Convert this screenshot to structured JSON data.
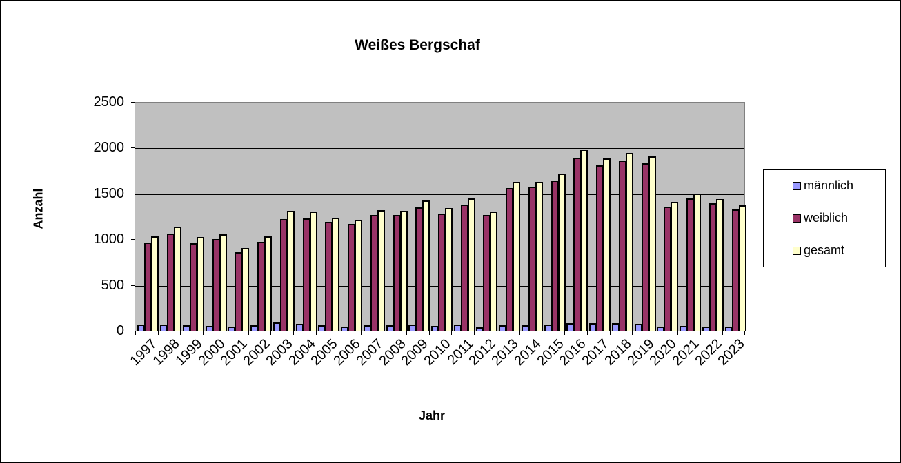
{
  "chart_data": {
    "type": "bar",
    "title": "Weißes Bergschaf",
    "xlabel": "Jahr",
    "ylabel": "Anzahl",
    "ylim": [
      0,
      2500
    ],
    "yticks": [
      0,
      500,
      1000,
      1500,
      2000,
      2500
    ],
    "grid": true,
    "legend_position": "right",
    "categories": [
      "1997",
      "1998",
      "1999",
      "2000",
      "2001",
      "2002",
      "2003",
      "2004",
      "2005",
      "2006",
      "2007",
      "2008",
      "2009",
      "2010",
      "2011",
      "2012",
      "2013",
      "2014",
      "2015",
      "2016",
      "2017",
      "2018",
      "2019",
      "2020",
      "2021",
      "2022",
      "2023"
    ],
    "series": [
      {
        "name": "männlich",
        "color": "#9999ff",
        "values": [
          70,
          70,
          63,
          55,
          48,
          63,
          93,
          78,
          58,
          48,
          58,
          58,
          71,
          56,
          71,
          41,
          60,
          60,
          68,
          83,
          83,
          83,
          76,
          43,
          53,
          43,
          46
        ]
      },
      {
        "name": "weiblich",
        "color": "#993366",
        "values": [
          965,
          1063,
          957,
          1000,
          859,
          973,
          1223,
          1230,
          1188,
          1170,
          1268,
          1263,
          1349,
          1284,
          1380,
          1268,
          1561,
          1572,
          1640,
          1890,
          1806,
          1860,
          1829,
          1359,
          1443,
          1390,
          1329
        ]
      },
      {
        "name": "gesamt",
        "color": "#ffffcc",
        "values": [
          1033,
          1139,
          1025,
          1056,
          904,
          1033,
          1314,
          1306,
          1238,
          1215,
          1321,
          1314,
          1420,
          1337,
          1448,
          1304,
          1630,
          1630,
          1715,
          1978,
          1880,
          1940,
          1903,
          1410,
          1499,
          1435,
          1374
        ]
      }
    ]
  },
  "legend": {
    "items": [
      {
        "label": "männlich",
        "color": "#9999ff"
      },
      {
        "label": "weiblich",
        "color": "#993366"
      },
      {
        "label": "gesamt",
        "color": "#ffffcc"
      }
    ]
  }
}
